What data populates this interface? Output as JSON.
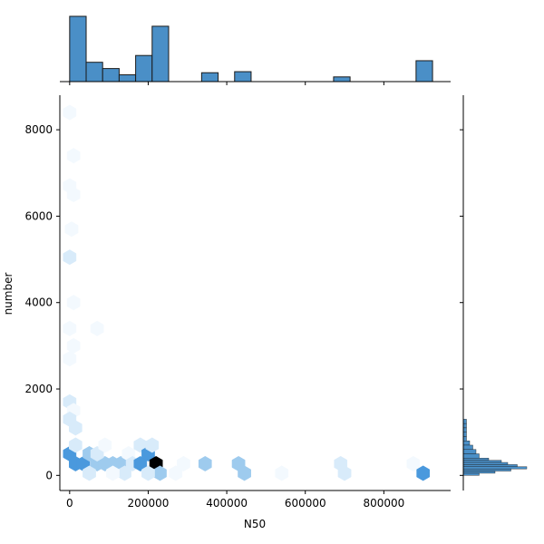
{
  "chart_data": {
    "type": "hexbin-joint",
    "xlabel": "N50",
    "ylabel": "number",
    "xlim": [
      -25000,
      970000
    ],
    "ylim": [
      -350,
      8800
    ],
    "x_ticks": [
      0,
      200000,
      400000,
      600000,
      800000
    ],
    "x_tick_labels": [
      "0",
      "200000",
      "400000",
      "600000",
      "800000"
    ],
    "y_ticks": [
      0,
      2000,
      4000,
      6000,
      8000
    ],
    "y_tick_labels": [
      "0",
      "2000",
      "4000",
      "6000",
      "8000"
    ],
    "grid": false,
    "colors": {
      "hist_fill": "#4a8fc7",
      "hist_edge": "#1b1b1b",
      "hex_max": "#000000",
      "hex_high": "#4a99dd",
      "hex_mid": "#9ecbee",
      "hex_low": "#d8ebfa",
      "hex_faint": "#f3f9fe"
    },
    "hexbins": [
      {
        "x": 0,
        "y": 8400,
        "level": "faint"
      },
      {
        "x": 10000,
        "y": 7400,
        "level": "faint"
      },
      {
        "x": 0,
        "y": 6700,
        "level": "faint"
      },
      {
        "x": 10000,
        "y": 6500,
        "level": "faint"
      },
      {
        "x": 5000,
        "y": 5700,
        "level": "faint"
      },
      {
        "x": 0,
        "y": 5050,
        "level": "low"
      },
      {
        "x": 10000,
        "y": 4000,
        "level": "faint"
      },
      {
        "x": 0,
        "y": 3400,
        "level": "faint"
      },
      {
        "x": 10000,
        "y": 3000,
        "level": "faint"
      },
      {
        "x": 0,
        "y": 2700,
        "level": "faint"
      },
      {
        "x": 0,
        "y": 1700,
        "level": "low"
      },
      {
        "x": 10000,
        "y": 1500,
        "level": "faint"
      },
      {
        "x": 0,
        "y": 1300,
        "level": "low"
      },
      {
        "x": 15000,
        "y": 1100,
        "level": "low"
      },
      {
        "x": 70000,
        "y": 3400,
        "level": "faint"
      },
      {
        "x": 0,
        "y": 500,
        "level": "high"
      },
      {
        "x": 15000,
        "y": 270,
        "level": "high"
      },
      {
        "x": 35000,
        "y": 270,
        "level": "high"
      },
      {
        "x": 15000,
        "y": 700,
        "level": "low"
      },
      {
        "x": 50000,
        "y": 500,
        "level": "mid"
      },
      {
        "x": 70000,
        "y": 270,
        "level": "mid"
      },
      {
        "x": 90000,
        "y": 270,
        "level": "mid"
      },
      {
        "x": 110000,
        "y": 270,
        "level": "mid"
      },
      {
        "x": 130000,
        "y": 270,
        "level": "mid"
      },
      {
        "x": 70000,
        "y": 500,
        "level": "low"
      },
      {
        "x": 90000,
        "y": 700,
        "level": "faint"
      },
      {
        "x": 150000,
        "y": 500,
        "level": "faint"
      },
      {
        "x": 160000,
        "y": 270,
        "level": "low"
      },
      {
        "x": 180000,
        "y": 700,
        "level": "low"
      },
      {
        "x": 180000,
        "y": 270,
        "level": "high"
      },
      {
        "x": 200000,
        "y": 500,
        "level": "high"
      },
      {
        "x": 210000,
        "y": 700,
        "level": "low"
      },
      {
        "x": 220000,
        "y": 270,
        "level": "max"
      },
      {
        "x": 230000,
        "y": 50,
        "level": "mid"
      },
      {
        "x": 200000,
        "y": 50,
        "level": "low"
      },
      {
        "x": 140000,
        "y": 50,
        "level": "low"
      },
      {
        "x": 110000,
        "y": 50,
        "level": "faint"
      },
      {
        "x": 50000,
        "y": 50,
        "level": "low"
      },
      {
        "x": 270000,
        "y": 50,
        "level": "faint"
      },
      {
        "x": 290000,
        "y": 270,
        "level": "faint"
      },
      {
        "x": 345000,
        "y": 270,
        "level": "mid"
      },
      {
        "x": 430000,
        "y": 270,
        "level": "mid"
      },
      {
        "x": 445000,
        "y": 50,
        "level": "mid"
      },
      {
        "x": 540000,
        "y": 50,
        "level": "faint"
      },
      {
        "x": 690000,
        "y": 270,
        "level": "low"
      },
      {
        "x": 700000,
        "y": 50,
        "level": "low"
      },
      {
        "x": 875000,
        "y": 270,
        "level": "faint"
      },
      {
        "x": 900000,
        "y": 50,
        "level": "high"
      }
    ],
    "x_histogram": {
      "bins": [
        {
          "start": 0,
          "end": 42000,
          "count": 12.5
        },
        {
          "start": 42000,
          "end": 84000,
          "count": 3.7
        },
        {
          "start": 84000,
          "end": 126000,
          "count": 2.5
        },
        {
          "start": 126000,
          "end": 168000,
          "count": 1.3
        },
        {
          "start": 168000,
          "end": 210000,
          "count": 5.0
        },
        {
          "start": 210000,
          "end": 252000,
          "count": 10.6
        },
        {
          "start": 336000,
          "end": 378000,
          "count": 1.7
        },
        {
          "start": 420000,
          "end": 462000,
          "count": 1.9
        },
        {
          "start": 672000,
          "end": 714000,
          "count": 0.9
        },
        {
          "start": 882000,
          "end": 924000,
          "count": 4.0
        }
      ]
    },
    "y_histogram": {
      "bins": [
        {
          "start": 1200,
          "end": 1300,
          "count": 1
        },
        {
          "start": 1100,
          "end": 1200,
          "count": 1
        },
        {
          "start": 1000,
          "end": 1100,
          "count": 1
        },
        {
          "start": 900,
          "end": 1000,
          "count": 1
        },
        {
          "start": 800,
          "end": 900,
          "count": 1
        },
        {
          "start": 700,
          "end": 800,
          "count": 2
        },
        {
          "start": 600,
          "end": 700,
          "count": 3
        },
        {
          "start": 500,
          "end": 600,
          "count": 4
        },
        {
          "start": 400,
          "end": 500,
          "count": 5
        },
        {
          "start": 350,
          "end": 400,
          "count": 8
        },
        {
          "start": 300,
          "end": 350,
          "count": 12
        },
        {
          "start": 250,
          "end": 300,
          "count": 14
        },
        {
          "start": 200,
          "end": 250,
          "count": 17
        },
        {
          "start": 150,
          "end": 200,
          "count": 20
        },
        {
          "start": 100,
          "end": 150,
          "count": 15
        },
        {
          "start": 50,
          "end": 100,
          "count": 10
        },
        {
          "start": 0,
          "end": 50,
          "count": 5
        }
      ]
    }
  }
}
